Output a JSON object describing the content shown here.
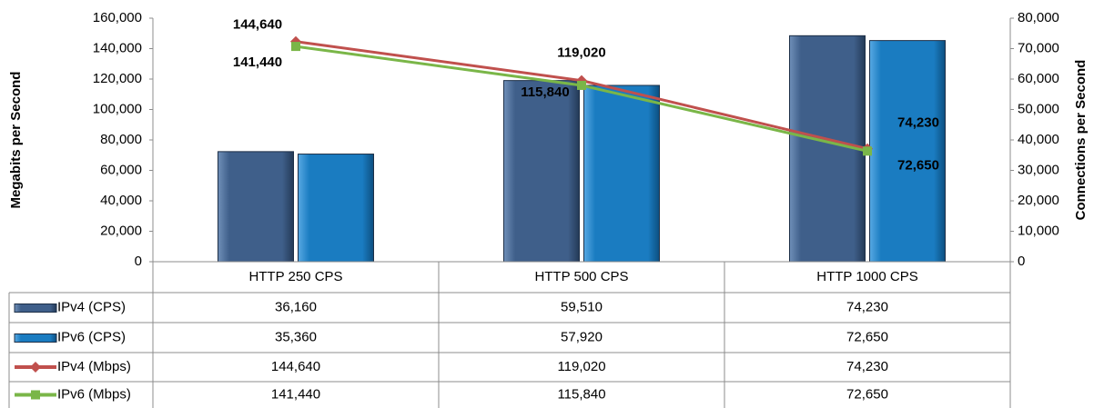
{
  "chart_data": {
    "type": "bar",
    "categories": [
      "HTTP 250 CPS",
      "HTTP 500 CPS",
      "HTTP 1000 CPS"
    ],
    "y_label": "Megabits per Second",
    "y2_label": "Connections per Second",
    "ylim": [
      0,
      160000
    ],
    "yticks": [
      0,
      {
        "value": 20000,
        "label": "20,000"
      },
      {
        "value": 40000,
        "label": "40,000"
      },
      {
        "value": 60000,
        "label": "60,000"
      },
      {
        "value": 80000,
        "label": "80,000"
      },
      {
        "value": 100000,
        "label": "100,000"
      },
      {
        "value": 120000,
        "label": "120,000"
      },
      {
        "value": 140000,
        "label": "140,000"
      },
      {
        "value": 160000,
        "label": "160,000"
      }
    ],
    "y2lim": [
      0,
      80000
    ],
    "y2ticks": [
      0,
      {
        "value": 10000,
        "label": "10,000"
      },
      {
        "value": 20000,
        "label": "20,000"
      },
      {
        "value": 30000,
        "label": "30,000"
      },
      {
        "value": 40000,
        "label": "40,000"
      },
      {
        "value": 50000,
        "label": "50,000"
      },
      {
        "value": 60000,
        "label": "60,000"
      },
      {
        "value": 70000,
        "label": "70,000"
      },
      {
        "value": 80000,
        "label": "80,000"
      }
    ],
    "data_table": true,
    "series": [
      {
        "name": "IPv4 (CPS)",
        "type": "bar",
        "axis": "y2",
        "color": "#3f5f8a",
        "values": [
          36160,
          59510,
          74230
        ],
        "value_labels": [
          "36,160",
          "59,510",
          "74,230"
        ]
      },
      {
        "name": "IPv6 (CPS)",
        "type": "bar",
        "axis": "y2",
        "color": "#1a7cc1",
        "values": [
          35360,
          57920,
          72650
        ],
        "value_labels": [
          "35,360",
          "57,920",
          "72,650"
        ]
      },
      {
        "name": "IPv4 (Mbps)",
        "type": "line",
        "color": "#c0504d",
        "values": [
          144640,
          119020,
          74230
        ],
        "value_labels": [
          "144,640",
          "119,020",
          "74,230"
        ]
      },
      {
        "name": "IPv6 (Mbps)",
        "type": "line",
        "color": "#7ab648",
        "values": [
          141440,
          115840,
          72650
        ],
        "value_labels": [
          "141,440",
          "115,840",
          "72,650"
        ]
      }
    ]
  }
}
